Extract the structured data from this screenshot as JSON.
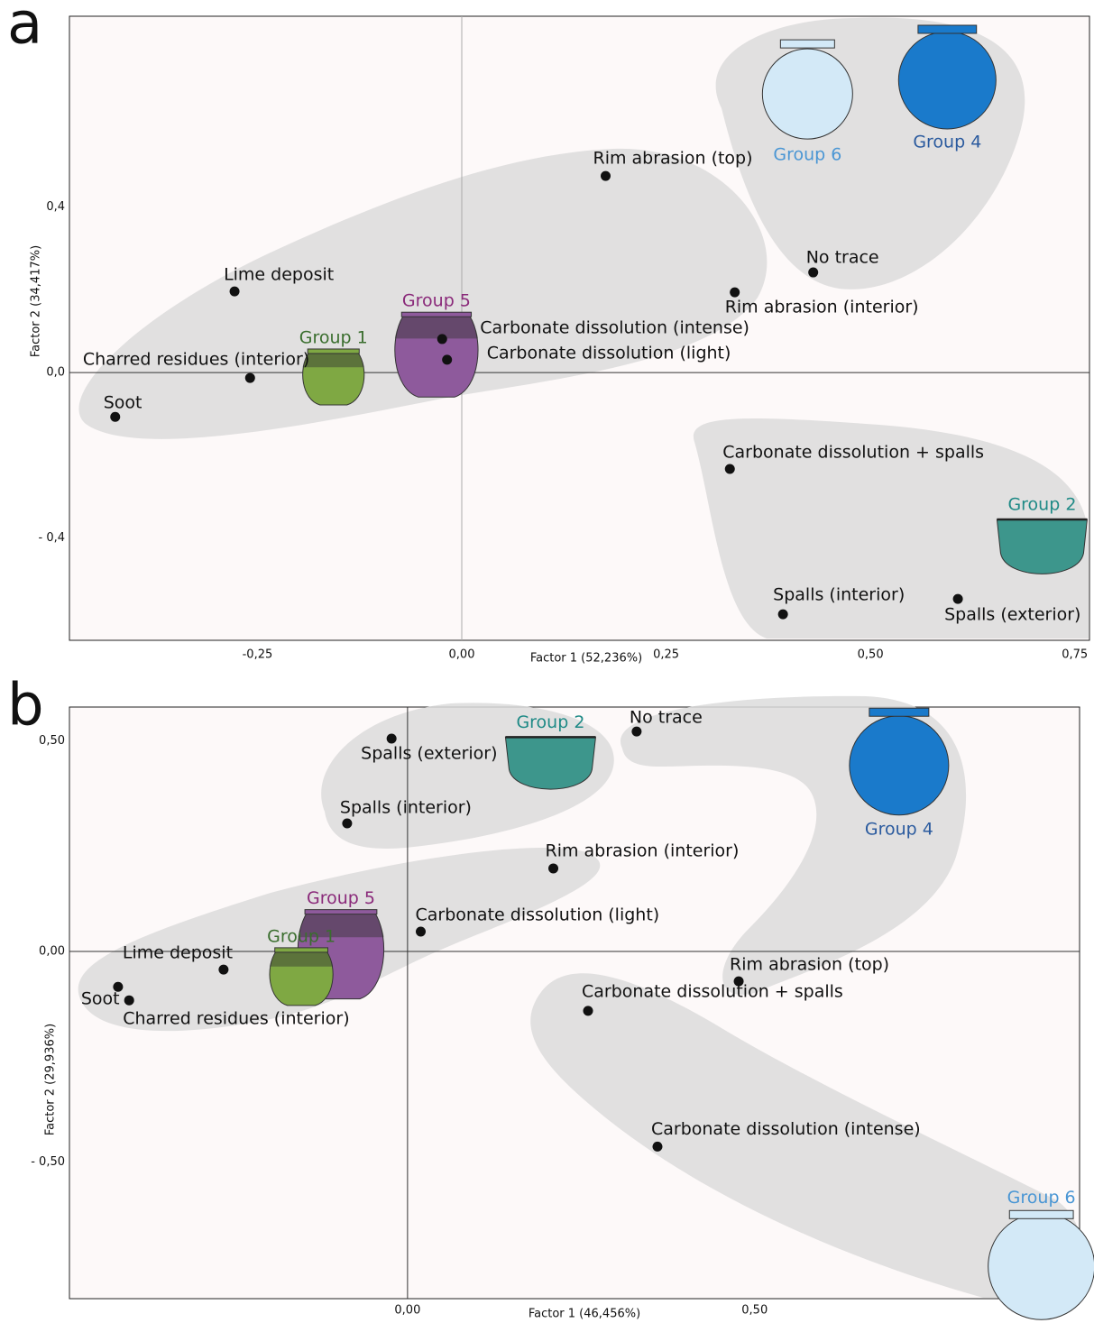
{
  "chart_data": [
    {
      "type": "scatter",
      "panel": "a",
      "xlabel": "Factor 1 (52,236%)",
      "ylabel": "Factor 2 (34,417%)",
      "xlim": [
        -0.48,
        0.768
      ],
      "ylim": [
        -0.647,
        0.861
      ],
      "xticks": [
        {
          "value": -0.25,
          "label": "-0,25"
        },
        {
          "value": 0,
          "label": "0,00"
        },
        {
          "value": 0.25,
          "label": "0,25"
        },
        {
          "value": 0.5,
          "label": "0,50"
        },
        {
          "value": 0.75,
          "label": "0,75"
        }
      ],
      "yticks": [
        {
          "value": 0.4,
          "label": "0,4"
        },
        {
          "value": 0,
          "label": "0,0"
        },
        {
          "value": -0.4,
          "label": "- 0,4"
        }
      ],
      "labels": [
        "Rim abrasion (top)",
        "Lime deposit",
        "No trace",
        "Rim abrasion (interior)",
        "Carbonate dissolution (intense)",
        "Carbonate dissolution (light)",
        "Charred residues (interior)",
        "Soot",
        "Carbonate dissolution + spalls",
        "Spalls (interior)",
        "Spalls (exterior)"
      ],
      "x": [
        0.176,
        -0.278,
        0.43,
        0.334,
        -0.024,
        -0.018,
        -0.259,
        -0.424,
        0.328,
        0.393,
        0.607
      ],
      "values": [
        0.475,
        0.196,
        0.242,
        0.194,
        0.081,
        0.031,
        -0.013,
        -0.107,
        -0.233,
        -0.584,
        -0.547
      ],
      "color": "#111111",
      "groups": {
        "names": [
          "Group 1",
          "Group 5",
          "Group 6",
          "Group 4",
          "Group 2"
        ],
        "x": [
          -0.157,
          -0.031,
          0.423,
          0.594,
          0.71
        ],
        "values": [
          -0.015,
          0.039,
          0.682,
          0.715,
          -0.429
        ],
        "colors": [
          "#7fa843",
          "#8e5a9c",
          "#d3e9f7",
          "#1a7acb",
          "#3d968c"
        ],
        "label_colors": [
          "#3a6e2e",
          "#8a2a7a",
          "#4a96d4",
          "#2a5a9e",
          "#1f8a86"
        ]
      }
    },
    {
      "type": "scatter",
      "panel": "b",
      "xlabel": "Factor 1 (46,456%)",
      "ylabel": "Factor 2 (29,936%)",
      "xlim": [
        -0.487,
        0.968
      ],
      "ylim": [
        -0.824,
        0.58
      ],
      "xticks": [
        {
          "value": 0,
          "label": "0,00"
        },
        {
          "value": 0.5,
          "label": "0,50"
        }
      ],
      "yticks": [
        {
          "value": 0.5,
          "label": "0,50"
        },
        {
          "value": 0,
          "label": "0,00"
        },
        {
          "value": -0.5,
          "label": "- 0,50"
        }
      ],
      "labels": [
        "No trace",
        "Spalls (exterior)",
        "Spalls (interior)",
        "Rim abrasion (interior)",
        "Carbonate dissolution (light)",
        "Lime deposit",
        "Soot",
        "Charred residues (interior)",
        "Rim abrasion (top)",
        "Carbonate dissolution + spalls",
        "Carbonate dissolution (intense)"
      ],
      "x": [
        0.33,
        -0.023,
        -0.087,
        0.21,
        0.019,
        -0.265,
        -0.417,
        -0.401,
        0.477,
        0.26,
        0.36
      ],
      "values": [
        0.522,
        0.505,
        0.304,
        0.197,
        0.047,
        -0.043,
        -0.084,
        -0.116,
        -0.071,
        -0.141,
        -0.463
      ],
      "color": "#111111",
      "groups": {
        "names": [
          "Group 2",
          "Group 4",
          "Group 5",
          "Group 1",
          "Group 6"
        ],
        "x": [
          0.206,
          0.708,
          -0.096,
          -0.153,
          0.913
        ],
        "values": [
          0.439,
          0.45,
          -0.011,
          -0.064,
          -0.739
        ],
        "colors": [
          "#3d968c",
          "#1a7acb",
          "#8e5a9c",
          "#7fa843",
          "#d3e9f7"
        ],
        "label_colors": [
          "#1f8a86",
          "#2a5a9e",
          "#8a2a7a",
          "#3a6e2e",
          "#4a96d4"
        ]
      }
    }
  ]
}
